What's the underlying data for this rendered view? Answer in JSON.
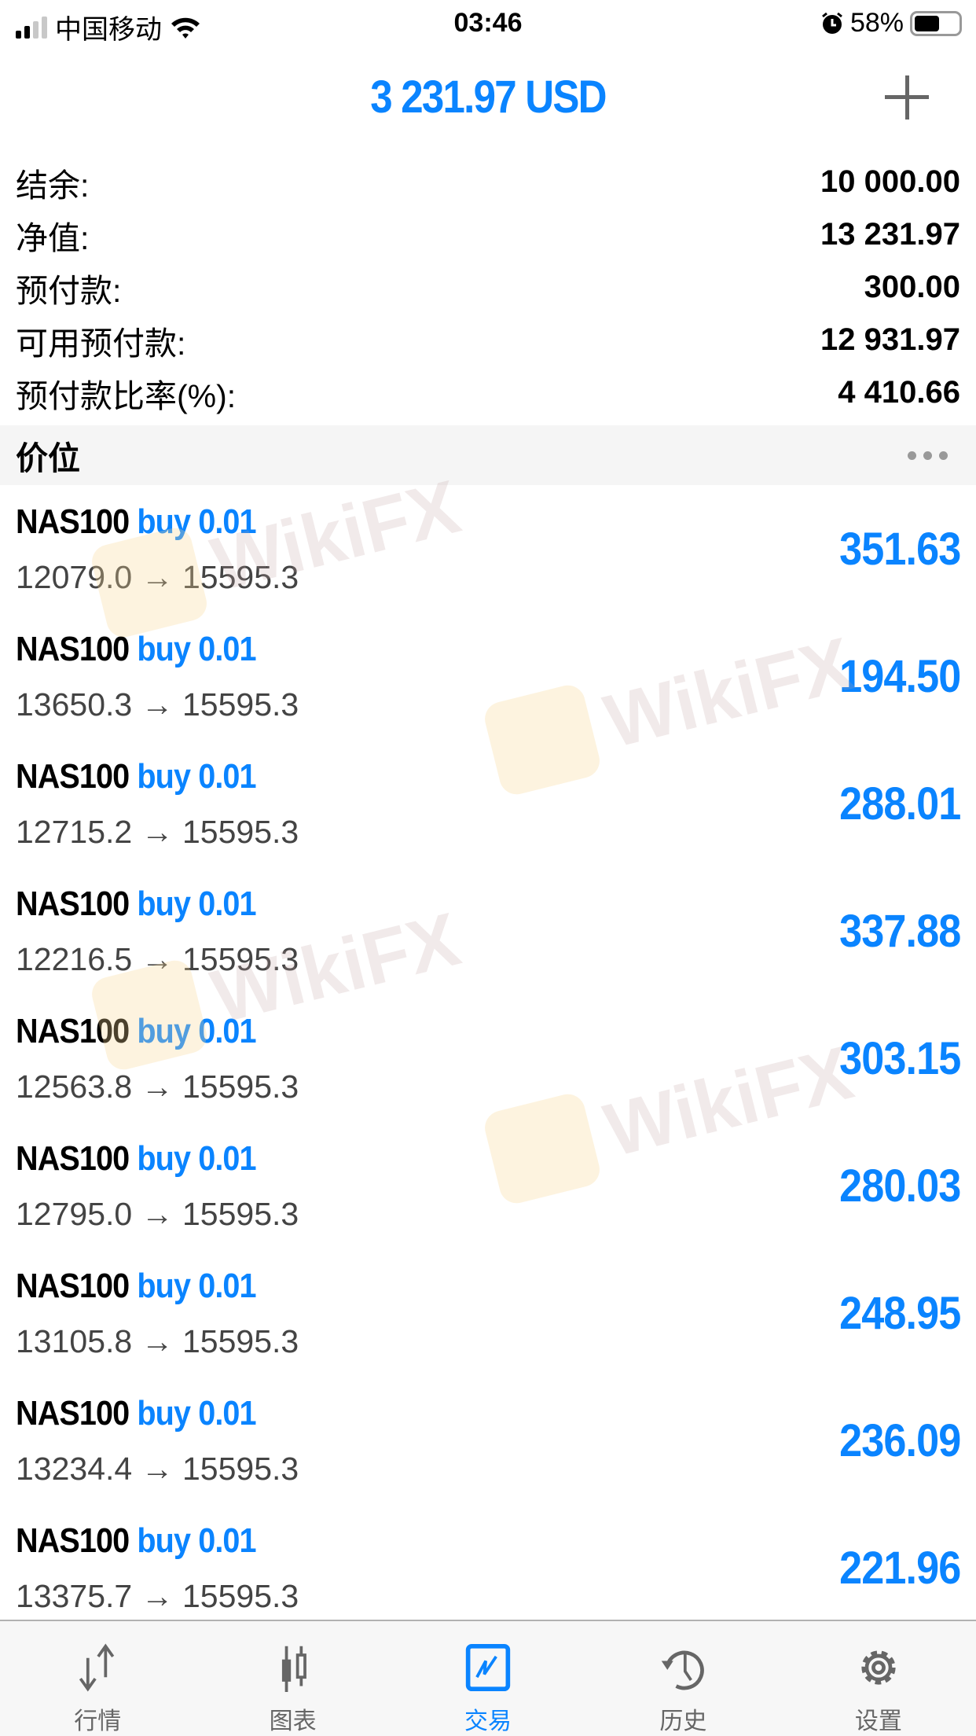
{
  "status_bar": {
    "carrier": "中国移动",
    "time": "03:46",
    "battery": "58%",
    "battery_level": 0.58
  },
  "header": {
    "title": "3 231.97 USD",
    "add_icon": "plus-icon"
  },
  "summary": [
    {
      "label": "结余:",
      "value": "10 000.00"
    },
    {
      "label": "净值:",
      "value": "13 231.97"
    },
    {
      "label": "预付款:",
      "value": "300.00"
    },
    {
      "label": "可用预付款:",
      "value": "12 931.97"
    },
    {
      "label": "预付款比率(%):",
      "value": "4 410.66"
    }
  ],
  "section": {
    "title": "价位",
    "menu_icon": "more-dots-icon"
  },
  "positions": [
    {
      "symbol": "NAS100",
      "side": "buy 0.01",
      "prices": "12079.0 → 15595.3",
      "profit": "351.63"
    },
    {
      "symbol": "NAS100",
      "side": "buy 0.01",
      "prices": "13650.3 → 15595.3",
      "profit": "194.50"
    },
    {
      "symbol": "NAS100",
      "side": "buy 0.01",
      "prices": "12715.2 → 15595.3",
      "profit": "288.01"
    },
    {
      "symbol": "NAS100",
      "side": "buy 0.01",
      "prices": "12216.5 → 15595.3",
      "profit": "337.88"
    },
    {
      "symbol": "NAS100",
      "side": "buy 0.01",
      "prices": "12563.8 → 15595.3",
      "profit": "303.15"
    },
    {
      "symbol": "NAS100",
      "side": "buy 0.01",
      "prices": "12795.0 → 15595.3",
      "profit": "280.03"
    },
    {
      "symbol": "NAS100",
      "side": "buy 0.01",
      "prices": "13105.8 → 15595.3",
      "profit": "248.95"
    },
    {
      "symbol": "NAS100",
      "side": "buy 0.01",
      "prices": "13234.4 → 15595.3",
      "profit": "236.09"
    },
    {
      "symbol": "NAS100",
      "side": "buy 0.01",
      "prices": "13375.7 → 15595.3",
      "profit": "221.96"
    }
  ],
  "watermark": "WikiFX",
  "tabs": [
    {
      "label": "行情",
      "icon": "quotes-arrows-icon"
    },
    {
      "label": "图表",
      "icon": "candlestick-icon"
    },
    {
      "label": "交易",
      "icon": "trade-chart-icon",
      "active": true
    },
    {
      "label": "历史",
      "icon": "history-clock-icon"
    },
    {
      "label": "设置",
      "icon": "gear-icon"
    }
  ],
  "colors": {
    "accent": "#0a84ff",
    "inactive": "#666666",
    "section_bg": "#f5f5f5"
  }
}
